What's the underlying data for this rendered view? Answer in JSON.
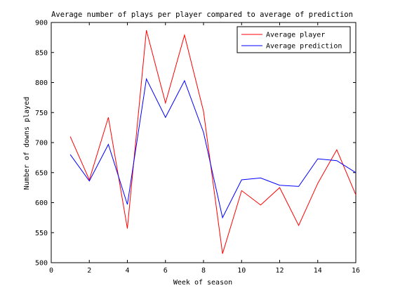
{
  "chart_data": {
    "type": "line",
    "title": "Average number of plays per player compared to average of prediction",
    "xlabel": "Week of season",
    "ylabel": "Number of downs played",
    "xlim": [
      0,
      16
    ],
    "ylim": [
      500,
      900
    ],
    "xticks": [
      0,
      2,
      4,
      6,
      8,
      10,
      12,
      14,
      16
    ],
    "yticks": [
      500,
      550,
      600,
      650,
      700,
      750,
      800,
      850,
      900
    ],
    "grid": false,
    "legend_position": "top-right",
    "x": [
      1,
      2,
      3,
      4,
      5,
      6,
      7,
      8,
      9,
      10,
      11,
      12,
      13,
      14,
      15,
      16
    ],
    "series": [
      {
        "name": "Average player",
        "color": "#ff0000",
        "values": [
          710,
          638,
          742,
          557,
          887,
          766,
          879,
          752,
          515,
          620,
          596,
          625,
          562,
          632,
          688,
          613
        ]
      },
      {
        "name": "Average prediction",
        "color": "#0000ff",
        "values": [
          680,
          636,
          697,
          597,
          806,
          742,
          803,
          717,
          575,
          638,
          641,
          629,
          627,
          673,
          670,
          650
        ]
      }
    ]
  }
}
